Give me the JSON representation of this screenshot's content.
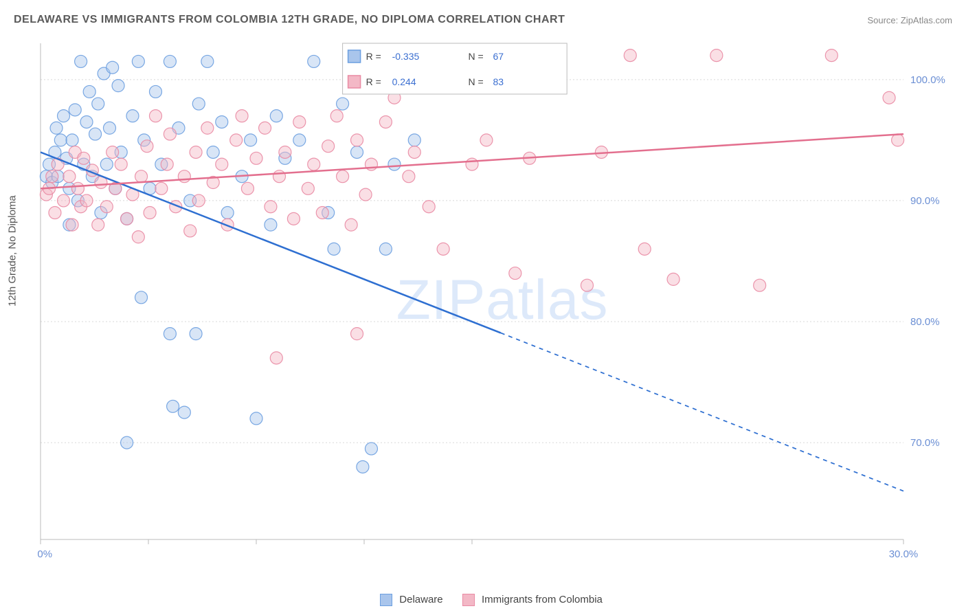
{
  "title": "DELAWARE VS IMMIGRANTS FROM COLOMBIA 12TH GRADE, NO DIPLOMA CORRELATION CHART",
  "source": "Source: ZipAtlas.com",
  "ylabel": "12th Grade, No Diploma",
  "watermark": "ZIPatlas",
  "chart": {
    "type": "scatter",
    "xlim": [
      0,
      30
    ],
    "ylim": [
      62,
      103
    ],
    "x_ticks": [
      0,
      3.75,
      7.5,
      11.25,
      15,
      30
    ],
    "x_tick_labels": {
      "0": "0.0%",
      "30": "30.0%"
    },
    "y_ticks": [
      70,
      80,
      90,
      100
    ],
    "y_tick_labels": {
      "70": "70.0%",
      "80": "80.0%",
      "90": "90.0%",
      "100": "100.0%"
    },
    "background_color": "#ffffff",
    "grid_color": "#d8d8d8",
    "grid_dash": "2,3",
    "axis_color": "#bbbbbb",
    "marker_radius": 9,
    "marker_opacity": 0.45,
    "line_width": 2.5,
    "series": [
      {
        "name": "Delaware",
        "color_fill": "#a9c5ec",
        "color_stroke": "#6b9fe0",
        "line_color": "#2e6fd1",
        "R": "-0.335",
        "N": "67",
        "trend": {
          "x1": 0,
          "y1": 94,
          "x2": 30,
          "y2": 66,
          "solid_until_x": 16
        },
        "points": [
          [
            0.2,
            92
          ],
          [
            0.3,
            93
          ],
          [
            0.4,
            91.5
          ],
          [
            0.5,
            94
          ],
          [
            0.55,
            96
          ],
          [
            0.6,
            92
          ],
          [
            0.7,
            95
          ],
          [
            0.8,
            97
          ],
          [
            0.9,
            93.5
          ],
          [
            1.0,
            88
          ],
          [
            1.0,
            91
          ],
          [
            1.1,
            95
          ],
          [
            1.2,
            97.5
          ],
          [
            1.3,
            90
          ],
          [
            1.4,
            101.5
          ],
          [
            1.5,
            93
          ],
          [
            1.6,
            96.5
          ],
          [
            1.7,
            99
          ],
          [
            1.8,
            92
          ],
          [
            1.9,
            95.5
          ],
          [
            2.0,
            98
          ],
          [
            2.1,
            89
          ],
          [
            2.2,
            100.5
          ],
          [
            2.3,
            93
          ],
          [
            2.4,
            96
          ],
          [
            2.5,
            101
          ],
          [
            2.6,
            91
          ],
          [
            2.7,
            99.5
          ],
          [
            2.8,
            94
          ],
          [
            3.0,
            88.5
          ],
          [
            3.0,
            70
          ],
          [
            3.2,
            97
          ],
          [
            3.4,
            101.5
          ],
          [
            3.5,
            82
          ],
          [
            3.6,
            95
          ],
          [
            3.8,
            91
          ],
          [
            4.0,
            99
          ],
          [
            4.2,
            93
          ],
          [
            4.5,
            79
          ],
          [
            4.5,
            101.5
          ],
          [
            4.6,
            73
          ],
          [
            4.8,
            96
          ],
          [
            5.0,
            72.5
          ],
          [
            5.2,
            90
          ],
          [
            5.4,
            79
          ],
          [
            5.5,
            98
          ],
          [
            5.8,
            101.5
          ],
          [
            6.0,
            94
          ],
          [
            6.3,
            96.5
          ],
          [
            6.5,
            89
          ],
          [
            7.0,
            92
          ],
          [
            7.3,
            95
          ],
          [
            7.5,
            72
          ],
          [
            8.0,
            88
          ],
          [
            8.2,
            97
          ],
          [
            8.5,
            93.5
          ],
          [
            9.0,
            95
          ],
          [
            9.5,
            101.5
          ],
          [
            10.0,
            89
          ],
          [
            10.2,
            86
          ],
          [
            10.5,
            98
          ],
          [
            11.0,
            94
          ],
          [
            11.2,
            68
          ],
          [
            11.5,
            69.5
          ],
          [
            12.0,
            86
          ],
          [
            12.3,
            93
          ],
          [
            13.0,
            95
          ]
        ]
      },
      {
        "name": "Immigrants from Colombia",
        "color_fill": "#f3b8c6",
        "color_stroke": "#e98aa3",
        "line_color": "#e36f8e",
        "R": "0.244",
        "N": "83",
        "trend": {
          "x1": 0,
          "y1": 91,
          "x2": 30,
          "y2": 95.5,
          "solid_until_x": 30
        },
        "points": [
          [
            0.2,
            90.5
          ],
          [
            0.3,
            91
          ],
          [
            0.4,
            92
          ],
          [
            0.5,
            89
          ],
          [
            0.6,
            93
          ],
          [
            0.8,
            90
          ],
          [
            1.0,
            92
          ],
          [
            1.1,
            88
          ],
          [
            1.2,
            94
          ],
          [
            1.3,
            91
          ],
          [
            1.4,
            89.5
          ],
          [
            1.5,
            93.5
          ],
          [
            1.6,
            90
          ],
          [
            1.8,
            92.5
          ],
          [
            2.0,
            88
          ],
          [
            2.1,
            91.5
          ],
          [
            2.3,
            89.5
          ],
          [
            2.5,
            94
          ],
          [
            2.6,
            91
          ],
          [
            2.8,
            93
          ],
          [
            3.0,
            88.5
          ],
          [
            3.2,
            90.5
          ],
          [
            3.4,
            87
          ],
          [
            3.5,
            92
          ],
          [
            3.7,
            94.5
          ],
          [
            3.8,
            89
          ],
          [
            4.0,
            97
          ],
          [
            4.2,
            91
          ],
          [
            4.4,
            93
          ],
          [
            4.5,
            95.5
          ],
          [
            4.7,
            89.5
          ],
          [
            5.0,
            92
          ],
          [
            5.2,
            87.5
          ],
          [
            5.4,
            94
          ],
          [
            5.5,
            90
          ],
          [
            5.8,
            96
          ],
          [
            6.0,
            91.5
          ],
          [
            6.3,
            93
          ],
          [
            6.5,
            88
          ],
          [
            6.8,
            95
          ],
          [
            7.0,
            97
          ],
          [
            7.2,
            91
          ],
          [
            7.5,
            93.5
          ],
          [
            7.8,
            96
          ],
          [
            8.0,
            89.5
          ],
          [
            8.2,
            77
          ],
          [
            8.3,
            92
          ],
          [
            8.5,
            94
          ],
          [
            8.8,
            88.5
          ],
          [
            9.0,
            96.5
          ],
          [
            9.3,
            91
          ],
          [
            9.5,
            93
          ],
          [
            9.8,
            89
          ],
          [
            10.0,
            94.5
          ],
          [
            10.3,
            97
          ],
          [
            10.5,
            92
          ],
          [
            10.8,
            88
          ],
          [
            11.0,
            79
          ],
          [
            11.0,
            95
          ],
          [
            11.3,
            90.5
          ],
          [
            11.5,
            93
          ],
          [
            12.0,
            96.5
          ],
          [
            12.3,
            98.5
          ],
          [
            12.8,
            92
          ],
          [
            13.0,
            94
          ],
          [
            13.5,
            89.5
          ],
          [
            14.0,
            86
          ],
          [
            15.0,
            93
          ],
          [
            15.5,
            95
          ],
          [
            16.0,
            102
          ],
          [
            16.5,
            84
          ],
          [
            17.0,
            93.5
          ],
          [
            18.0,
            102
          ],
          [
            19.0,
            83
          ],
          [
            19.5,
            94
          ],
          [
            20.5,
            102
          ],
          [
            21.0,
            86
          ],
          [
            22.0,
            83.5
          ],
          [
            23.5,
            102
          ],
          [
            25.0,
            83
          ],
          [
            27.5,
            102
          ],
          [
            29.5,
            98.5
          ],
          [
            29.8,
            95
          ]
        ]
      }
    ],
    "stats_legend_box": {
      "x": 10.5,
      "y_top": 103,
      "width": 7.8,
      "height": 4.2,
      "border_color": "#bbbbbb",
      "bg_color": "#ffffff"
    },
    "bottom_legend": [
      {
        "label": "Delaware",
        "fill": "#a9c5ec",
        "stroke": "#6b9fe0"
      },
      {
        "label": "Immigrants from Colombia",
        "fill": "#f3b8c6",
        "stroke": "#e98aa3"
      }
    ]
  }
}
